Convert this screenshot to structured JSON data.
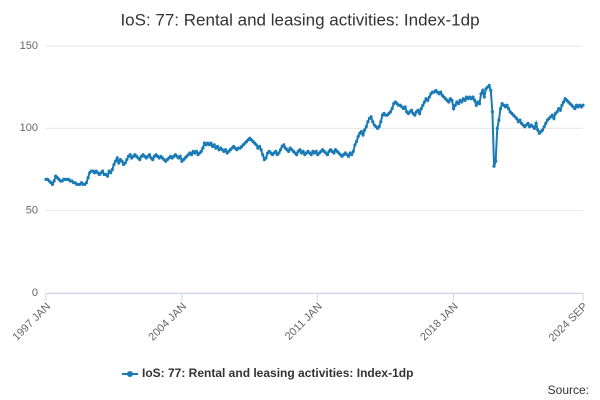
{
  "chart_data": {
    "type": "line",
    "title": "IoS: 77: Rental and leasing activities: Index-1dp",
    "source": "Source:",
    "categories": [
      "1997 JAN",
      null,
      null,
      null,
      null,
      null,
      null,
      null,
      null,
      null,
      null,
      null,
      null,
      null,
      null,
      null,
      null,
      null,
      null,
      null,
      null,
      null,
      null,
      null,
      null,
      null,
      null,
      null,
      null,
      null,
      null,
      null,
      null,
      null,
      null,
      null,
      null,
      null,
      null,
      null,
      null,
      null,
      null,
      null,
      null,
      null,
      null,
      null,
      null,
      null,
      null,
      null,
      null,
      null,
      null,
      null,
      null,
      null,
      null,
      null,
      null,
      null,
      null,
      null,
      null,
      null,
      null,
      null,
      null,
      null,
      null,
      null,
      null,
      null,
      null,
      null,
      null,
      null,
      null,
      null,
      null,
      null,
      null,
      null,
      "2004 JAN",
      null,
      null,
      null,
      null,
      null,
      null,
      null,
      null,
      null,
      null,
      null,
      null,
      null,
      null,
      null,
      null,
      null,
      null,
      null,
      null,
      null,
      null,
      null,
      null,
      null,
      null,
      null,
      null,
      null,
      null,
      null,
      null,
      null,
      null,
      null,
      null,
      null,
      null,
      null,
      null,
      null,
      null,
      null,
      null,
      null,
      null,
      null,
      null,
      null,
      null,
      null,
      null,
      null,
      null,
      null,
      null,
      null,
      null,
      null,
      null,
      null,
      null,
      null,
      null,
      null,
      null,
      null,
      null,
      null,
      null,
      null,
      null,
      null,
      null,
      null,
      null,
      null,
      null,
      null,
      null,
      null,
      null,
      null,
      "2011 JAN",
      null,
      null,
      null,
      null,
      null,
      null,
      null,
      null,
      null,
      null,
      null,
      null,
      null,
      null,
      null,
      null,
      null,
      null,
      null,
      null,
      null,
      null,
      null,
      null,
      null,
      null,
      null,
      null,
      null,
      null,
      null,
      null,
      null,
      null,
      null,
      null,
      null,
      null,
      null,
      null,
      null,
      null,
      null,
      null,
      null,
      null,
      null,
      null,
      null,
      null,
      null,
      null,
      null,
      null,
      null,
      null,
      null,
      null,
      null,
      null,
      null,
      null,
      null,
      null,
      null,
      null,
      null,
      null,
      null,
      null,
      null,
      null,
      null,
      null,
      null,
      null,
      null,
      null,
      null,
      null,
      null,
      null,
      null,
      "2018 JAN",
      null,
      null,
      null,
      null,
      null,
      null,
      null,
      null,
      null,
      null,
      null,
      null,
      null,
      null,
      null,
      null,
      null,
      null,
      null,
      null,
      null,
      null,
      null,
      null,
      null,
      null,
      null,
      null,
      null,
      null,
      null,
      null,
      null,
      null,
      null,
      null,
      null,
      null,
      null,
      null,
      null,
      null,
      null,
      null,
      null,
      null,
      null,
      null,
      null,
      null,
      null,
      null,
      null,
      null,
      null,
      null,
      null,
      null,
      null,
      null,
      null,
      null,
      null,
      null,
      null,
      null,
      null,
      null,
      null,
      null,
      null,
      null,
      null,
      null,
      null,
      null,
      null,
      null,
      null,
      "2024 SEP"
    ],
    "series": [
      {
        "name": "IoS: 77: Rental and leasing activities: Index-1dp",
        "color": "#1a7ab5",
        "values": [
          69,
          69,
          68,
          67,
          66,
          68,
          71,
          70,
          69,
          68,
          68,
          69,
          69,
          69,
          69,
          68,
          68,
          67,
          67,
          66,
          66,
          66,
          67,
          66,
          66,
          67,
          70,
          73,
          74,
          74,
          73,
          74,
          73,
          72,
          73,
          74,
          72,
          72,
          71,
          74,
          73,
          75,
          78,
          80,
          82,
          79,
          81,
          80,
          78,
          79,
          81,
          83,
          84,
          82,
          83,
          84,
          83,
          82,
          81,
          83,
          84,
          83,
          82,
          83,
          84,
          82,
          81,
          83,
          84,
          83,
          82,
          83,
          82,
          81,
          80,
          81,
          82,
          83,
          82,
          83,
          84,
          83,
          82,
          83,
          80,
          81,
          82,
          83,
          84,
          85,
          84,
          86,
          85,
          86,
          84,
          85,
          86,
          88,
          91,
          90,
          91,
          90,
          91,
          89,
          90,
          88,
          89,
          87,
          88,
          87,
          86,
          87,
          85,
          86,
          87,
          88,
          89,
          88,
          87,
          88,
          88,
          89,
          90,
          91,
          92,
          93,
          94,
          93,
          92,
          91,
          90,
          88,
          89,
          87,
          84,
          81,
          82,
          85,
          86,
          85,
          84,
          85,
          86,
          84,
          85,
          87,
          89,
          90,
          88,
          87,
          86,
          88,
          87,
          86,
          85,
          84,
          86,
          87,
          85,
          86,
          84,
          85,
          86,
          85,
          84,
          86,
          85,
          86,
          84,
          85,
          86,
          87,
          86,
          85,
          84,
          86,
          87,
          86,
          85,
          87,
          86,
          85,
          84,
          83,
          84,
          85,
          84,
          83,
          85,
          84,
          86,
          90,
          92,
          95,
          97,
          98,
          96,
          99,
          101,
          104,
          106,
          107,
          104,
          102,
          101,
          100,
          101,
          104,
          108,
          109,
          108,
          108,
          109,
          110,
          112,
          115,
          116,
          115,
          114,
          114,
          113,
          112,
          113,
          110,
          109,
          110,
          111,
          109,
          108,
          110,
          111,
          109,
          112,
          114,
          116,
          118,
          117,
          119,
          121,
          122,
          122,
          123,
          122,
          121,
          122,
          120,
          119,
          118,
          117,
          116,
          118,
          117,
          112,
          114,
          116,
          115,
          117,
          116,
          118,
          117,
          119,
          118,
          119,
          118,
          119,
          117,
          114,
          116,
          115,
          121,
          123,
          119,
          124,
          125,
          126,
          123,
          110,
          77,
          80,
          100,
          105,
          112,
          115,
          114,
          113,
          114,
          112,
          110,
          109,
          108,
          107,
          106,
          104,
          105,
          103,
          102,
          101,
          102,
          103,
          101,
          102,
          101,
          100,
          103,
          99,
          97,
          98,
          99,
          101,
          103,
          105,
          106,
          107,
          108,
          106,
          109,
          110,
          112,
          111,
          114,
          116,
          118,
          117,
          116,
          115,
          114,
          113,
          112,
          114,
          113,
          114,
          113,
          114
        ]
      }
    ],
    "ylim": [
      0,
      150
    ],
    "yticks": [
      0,
      50,
      100,
      150
    ],
    "grid": true
  }
}
